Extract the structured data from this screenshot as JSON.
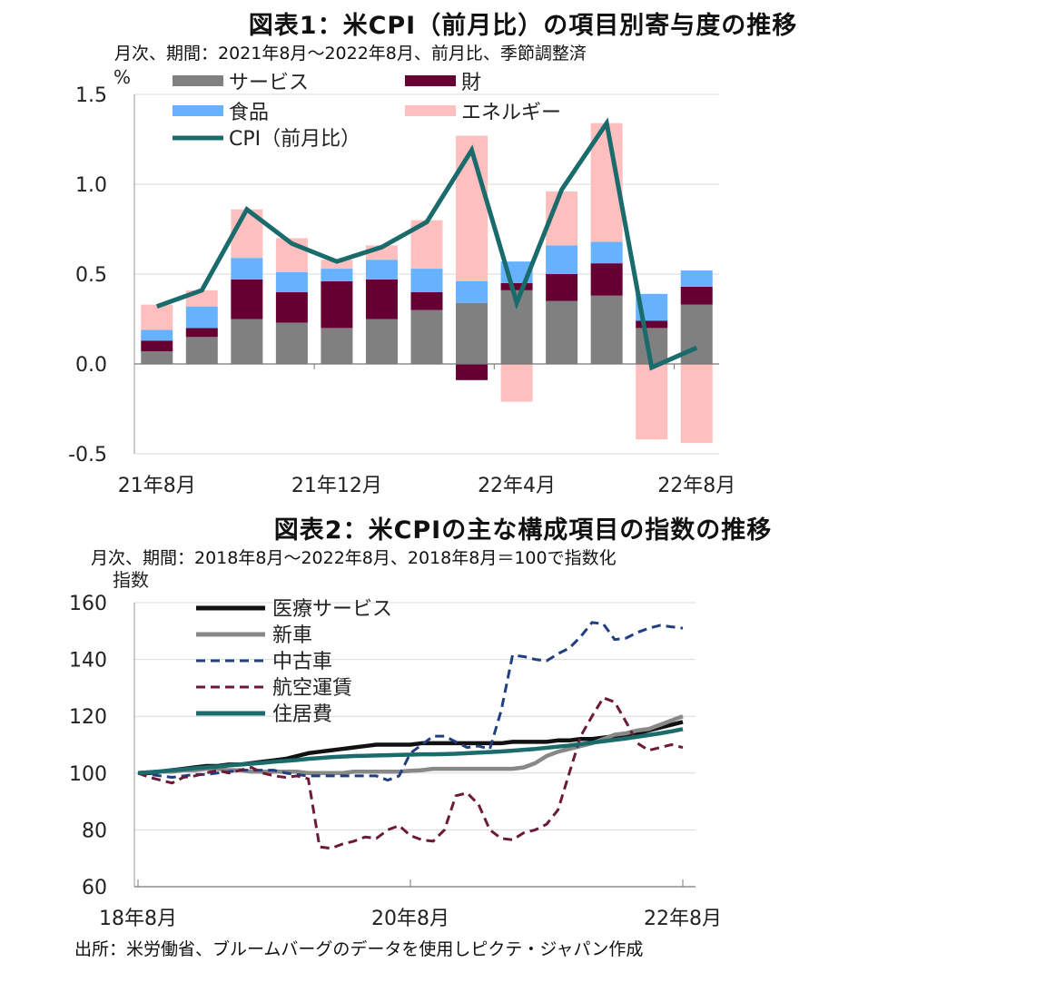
{
  "chart1_title": "図表1：米CPI（前月比）の項目別寄与度の推移",
  "chart1_subtitle": "月次、期間：2021年8月～2022年8月、前月比、季節調整済",
  "chart2_title": "図表2：米CPIの主な構成項目の指数の推移",
  "chart2_subtitle": "月次、期間：2018年8月～2022年8月、2018年8月＝100で指数化",
  "source": "出所：米労働省、ブルームバーグのデータを使用しピクテ・ジャパン作成",
  "chart_data": [
    {
      "type": "bar",
      "stacked": true,
      "title": "図表1：米CPI（前月比）の項目別寄与度の推移",
      "ylabel": "%",
      "ylim": [
        -0.5,
        1.5
      ],
      "yticks": [
        "1.5",
        "1.0",
        "0.5",
        "0.0",
        "-0.5"
      ],
      "ytick_values": [
        1.5,
        1.0,
        0.5,
        0.0,
        -0.5
      ],
      "xtick_labels": [
        "21年8月",
        "21年12月",
        "22年4月",
        "22年8月"
      ],
      "xtick_index": [
        0,
        4,
        8,
        12
      ],
      "categories": [
        "21年8月",
        "21年9月",
        "21年10月",
        "21年11月",
        "21年12月",
        "22年1月",
        "22年2月",
        "22年3月",
        "22年4月",
        "22年5月",
        "22年6月",
        "22年7月",
        "22年8月"
      ],
      "grid": "horizontal",
      "legend_position": "top",
      "series": [
        {
          "name": "サービス",
          "color": "#808080",
          "values": [
            0.07,
            0.15,
            0.25,
            0.23,
            0.2,
            0.25,
            0.3,
            0.34,
            0.41,
            0.35,
            0.38,
            0.2,
            0.33
          ]
        },
        {
          "name": "財",
          "color": "#660033",
          "values": [
            0.06,
            0.05,
            0.22,
            0.17,
            0.26,
            0.22,
            0.1,
            -0.09,
            0.04,
            0.15,
            0.18,
            0.04,
            0.1
          ]
        },
        {
          "name": "食品",
          "color": "#66b2ff",
          "values": [
            0.06,
            0.12,
            0.12,
            0.11,
            0.07,
            0.11,
            0.13,
            0.12,
            0.12,
            0.16,
            0.12,
            0.15,
            0.09
          ]
        },
        {
          "name": "エネルギー",
          "color": "#ffbfbf",
          "values": [
            0.14,
            0.09,
            0.27,
            0.19,
            0.05,
            0.08,
            0.27,
            0.81,
            -0.21,
            0.3,
            0.66,
            -0.42,
            -0.44
          ]
        }
      ],
      "line_series": {
        "name": "CPI（前月比）",
        "color": "#1a6b6b",
        "values": [
          0.32,
          0.41,
          0.86,
          0.67,
          0.57,
          0.65,
          0.79,
          1.19,
          0.34,
          0.97,
          1.34,
          -0.02,
          0.09
        ]
      }
    },
    {
      "type": "line",
      "title": "図表2：米CPIの主な構成項目の指数の推移",
      "ylabel": "指数",
      "ylim": [
        60,
        160
      ],
      "yticks": [
        "160",
        "140",
        "120",
        "100",
        "80",
        "60"
      ],
      "ytick_values": [
        160,
        140,
        120,
        100,
        80,
        60
      ],
      "xtick_labels": [
        "18年8月",
        "20年8月",
        "22年8月"
      ],
      "xtick_index": [
        0,
        24,
        48
      ],
      "x_start": "2018-08",
      "x_end": "2022-08",
      "grid": "horizontal",
      "legend_position": "top-left",
      "series": [
        {
          "name": "医療サービス",
          "color": "#111111",
          "dash": "solid",
          "values": [
            100,
            100,
            100.5,
            101,
            101.5,
            102,
            102.5,
            102.5,
            103,
            103,
            103.5,
            104,
            104.5,
            105,
            106,
            107,
            107.5,
            108,
            108.5,
            109,
            109.5,
            110,
            110,
            110,
            110,
            110.5,
            110.5,
            110.5,
            110.5,
            110.5,
            110.5,
            110.5,
            110.5,
            111,
            111,
            111,
            111,
            111.5,
            111.5,
            112,
            112,
            112.5,
            113,
            113.5,
            114,
            115,
            116,
            117,
            118
          ]
        },
        {
          "name": "新車",
          "color": "#888888",
          "dash": "solid",
          "values": [
            100,
            100.3,
            100.5,
            100.5,
            101,
            101,
            101.5,
            101.5,
            101,
            101,
            100.5,
            100.5,
            100.5,
            100.5,
            100.5,
            100,
            100,
            100,
            100,
            100.5,
            100.5,
            100.5,
            100.5,
            100.5,
            100.8,
            101,
            101.5,
            101.5,
            101.5,
            101.5,
            101.5,
            101.5,
            101.5,
            101.5,
            102,
            103.5,
            106,
            107.5,
            108.5,
            109.5,
            110.5,
            112,
            113.5,
            114,
            115,
            115.5,
            117,
            118.5,
            120
          ]
        },
        {
          "name": "中古車",
          "color": "#1f3f7f",
          "dash": "dashed",
          "values": [
            100,
            99.5,
            99,
            98.5,
            99,
            99.5,
            99.5,
            100,
            100.5,
            101,
            101,
            101,
            101,
            100,
            99.5,
            99,
            99,
            99,
            99,
            99,
            99,
            99,
            97.5,
            99,
            107,
            110,
            113,
            113,
            111,
            109,
            109.5,
            108.5,
            122,
            141.5,
            141,
            140,
            139.5,
            142,
            144,
            148,
            153,
            152.5,
            147,
            147.5,
            149.5,
            151,
            152,
            151.5,
            151
          ]
        },
        {
          "name": "航空運賃",
          "color": "#6b1a3a",
          "dash": "dashed",
          "values": [
            100,
            98.5,
            97.5,
            96.5,
            98.5,
            99,
            100,
            101,
            100,
            101,
            102,
            100,
            99,
            98.5,
            99,
            98,
            74,
            73.5,
            75,
            76,
            77.5,
            77,
            80,
            81.5,
            78,
            76.5,
            76,
            80,
            92,
            93,
            89,
            80,
            77,
            76.5,
            79,
            80,
            82,
            87,
            100,
            113,
            120,
            126.5,
            125,
            118,
            110.5,
            108,
            109,
            110,
            109
          ]
        },
        {
          "name": "住居費",
          "color": "#1a6b6b",
          "dash": "solid",
          "values": [
            100,
            100.3,
            100.6,
            101,
            101.3,
            101.7,
            102,
            102.3,
            102.7,
            103,
            103.3,
            103.6,
            104,
            104.3,
            104.6,
            105,
            105.3,
            105.6,
            105.8,
            106,
            106.1,
            106.2,
            106.3,
            106.4,
            106.5,
            106.6,
            106.6,
            106.7,
            106.8,
            107,
            107.2,
            107.4,
            107.6,
            107.9,
            108.2,
            108.5,
            108.9,
            109.3,
            109.7,
            110.2,
            110.7,
            111.2,
            111.7,
            112.2,
            112.8,
            113.4,
            114,
            114.7,
            115.5
          ]
        }
      ]
    }
  ]
}
